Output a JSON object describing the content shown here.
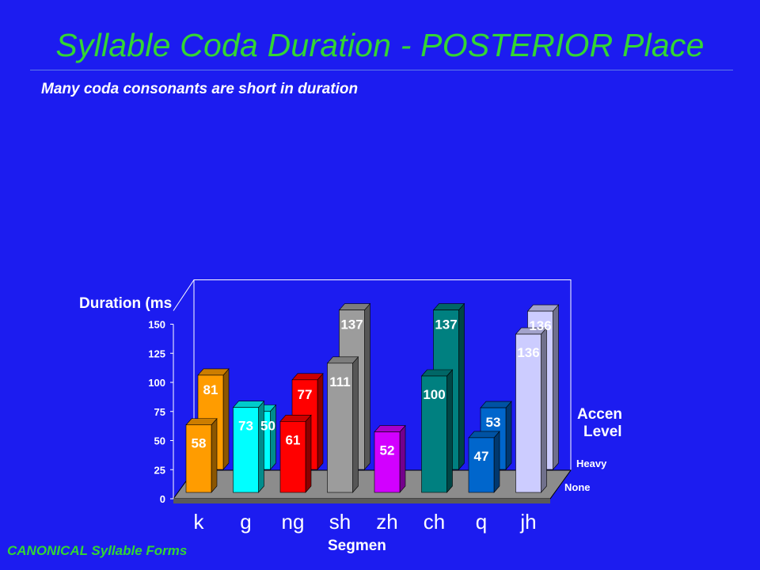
{
  "slide": {
    "title": "Syllable Coda Duration - POSTERIOR Place",
    "subtitle": "Many coda consonants are short in duration",
    "footer": "CANONICAL Syllable Forms"
  },
  "chart_data": {
    "type": "bar",
    "title": "",
    "ylabel": "Duration (ms",
    "xlabel": "Segmen",
    "legend_title": [
      "Accen",
      "Level"
    ],
    "ylim": [
      0,
      150
    ],
    "yticks": [
      0,
      25,
      50,
      75,
      100,
      125,
      150
    ],
    "grid": false,
    "legend_placement": "right",
    "categories": [
      "k",
      "g",
      "ng",
      "sh",
      "zh",
      "ch",
      "q",
      "jh"
    ],
    "series": [
      {
        "name": "Heavy",
        "values": [
          81,
          50,
          77,
          137,
          null,
          137,
          53,
          136
        ]
      },
      {
        "name": "None",
        "values": [
          58,
          73,
          61,
          111,
          52,
          100,
          47,
          136
        ]
      }
    ],
    "colors": [
      "#ff9c00",
      "#00ffff",
      "#ff0000",
      "#9c9c9c",
      "#d200ff",
      "#008080",
      "#0066cc",
      "#ccccff"
    ],
    "floor_color": "#8c8c8c"
  }
}
